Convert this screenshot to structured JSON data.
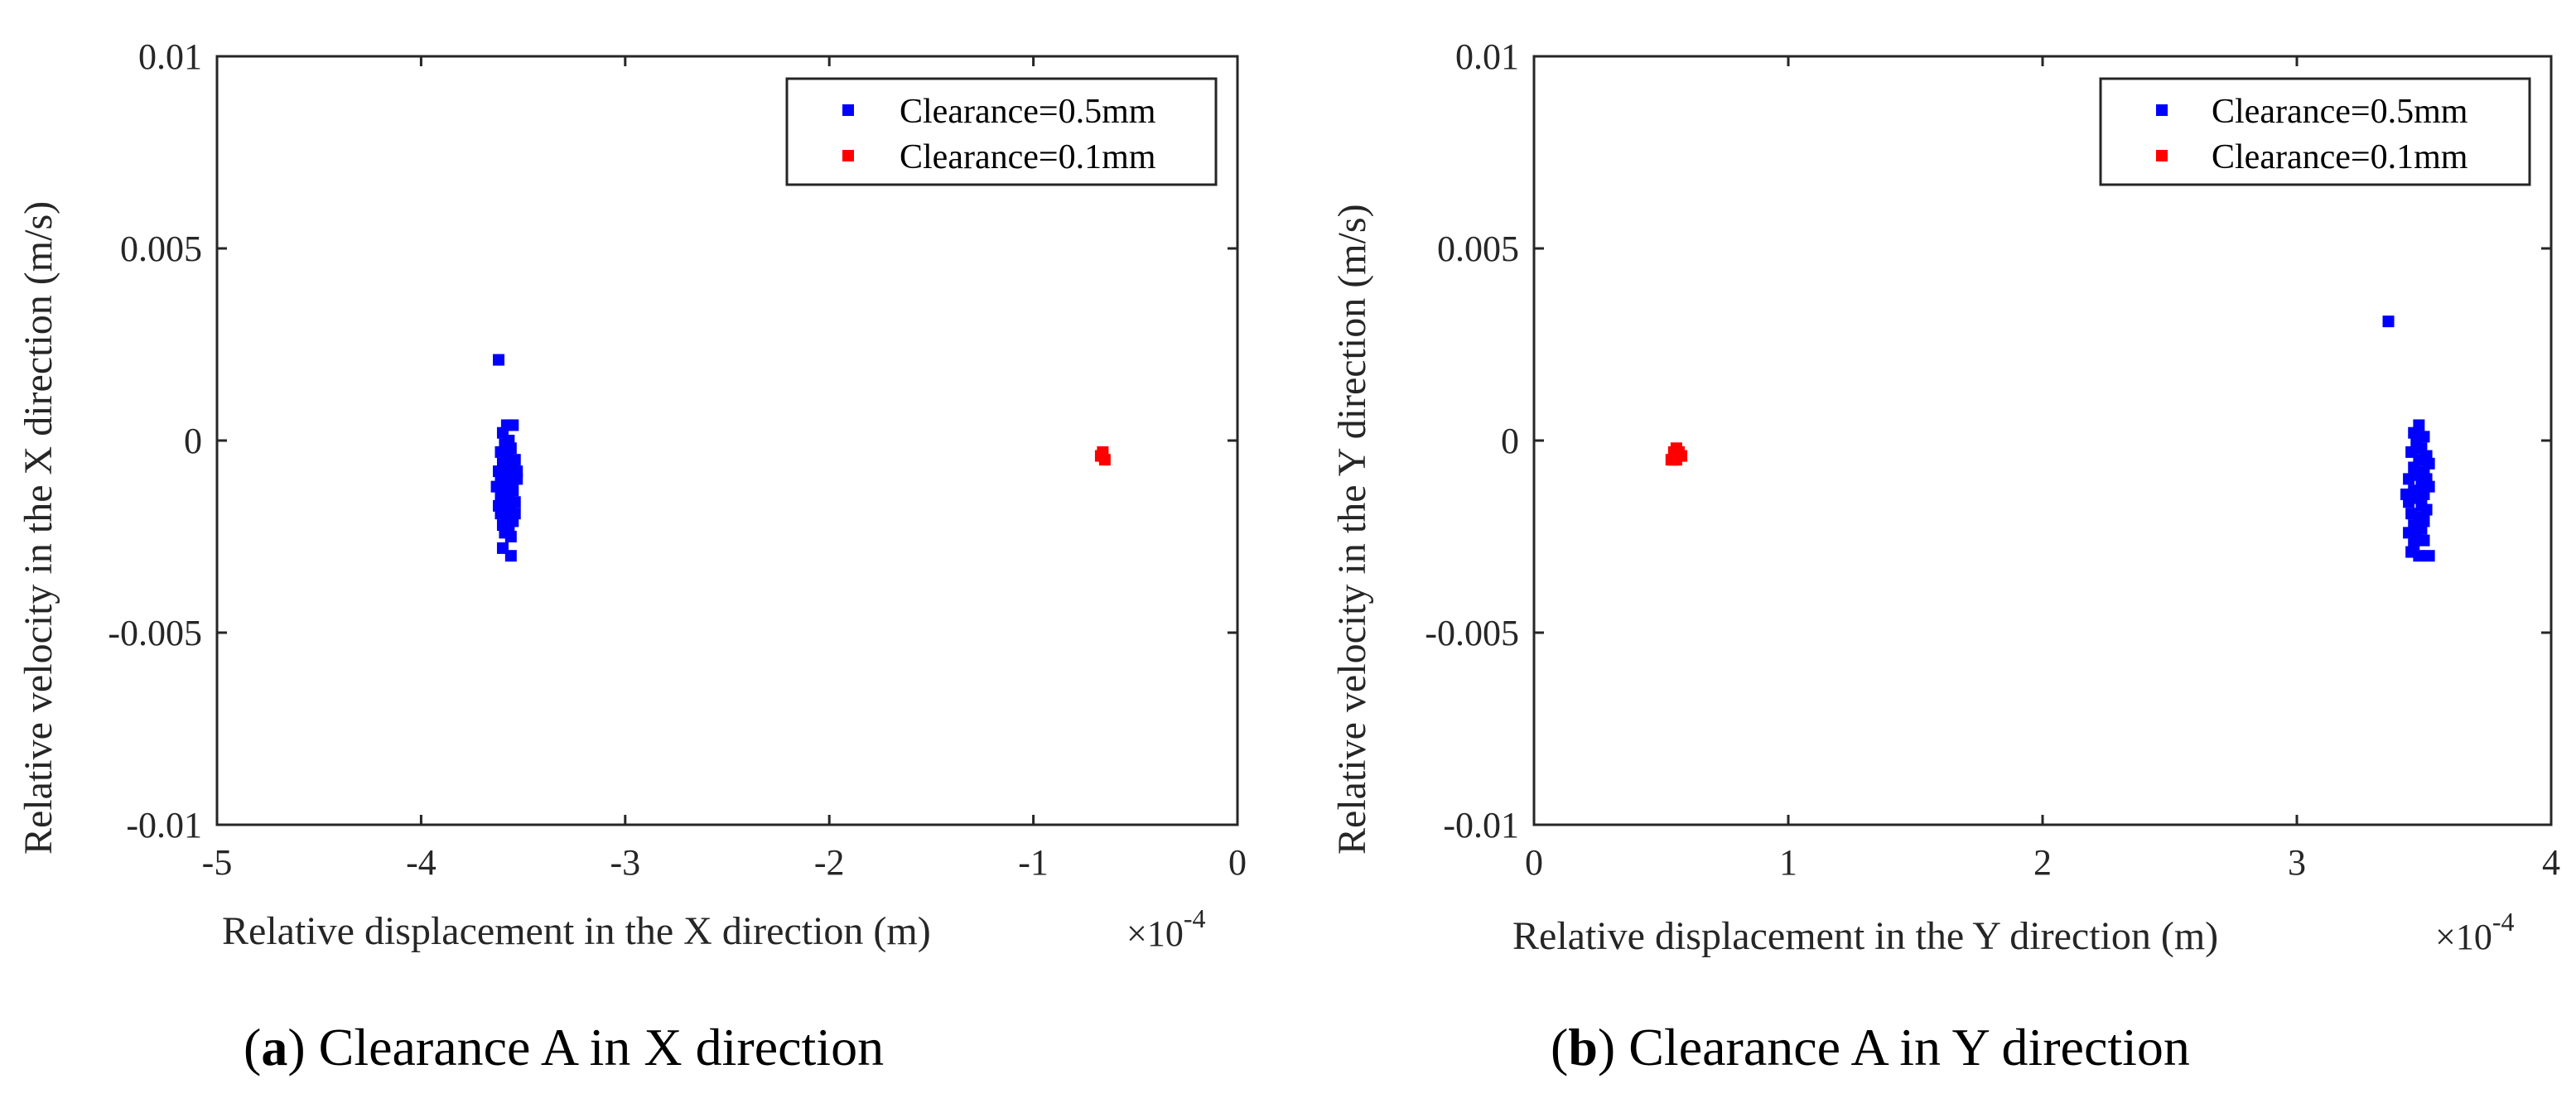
{
  "chart_data": [
    {
      "type": "scatter",
      "panel": "a",
      "caption_letter": "a",
      "caption_text": "Clearance A in X direction",
      "xlabel": "Relative displacement in the X direction (m)",
      "ylabel": "Relative velocity in the X direction (m/s)",
      "x_multiplier": "×10",
      "x_exponent": "-4",
      "xlim": [
        -5,
        0
      ],
      "ylim": [
        -0.01,
        0.01
      ],
      "xticks": [
        -5,
        -4,
        -3,
        -2,
        -1,
        0
      ],
      "xtick_labels": [
        "-5",
        "-4",
        "-3",
        "-2",
        "-1",
        "0"
      ],
      "yticks": [
        -0.01,
        -0.005,
        0,
        0.005,
        0.01
      ],
      "ytick_labels": [
        "-0.01",
        "-0.005",
        "0",
        "0.005",
        "0.01"
      ],
      "legend_position": "top-right",
      "series": [
        {
          "name": "Clearance=0.5mm",
          "color": "#0000FF",
          "points": [
            [
              -3.62,
              0.0021
            ],
            [
              -3.58,
              0.0004
            ],
            [
              -3.55,
              0.0004
            ],
            [
              -3.6,
              0.0002
            ],
            [
              -3.57,
              0.0
            ],
            [
              -3.59,
              -0.0001
            ],
            [
              -3.56,
              -0.0002
            ],
            [
              -3.61,
              -0.0003
            ],
            [
              -3.58,
              -0.0004
            ],
            [
              -3.54,
              -0.0005
            ],
            [
              -3.6,
              -0.0006
            ],
            [
              -3.57,
              -0.0007
            ],
            [
              -3.55,
              -0.0006
            ],
            [
              -3.62,
              -0.0008
            ],
            [
              -3.59,
              -0.0009
            ],
            [
              -3.56,
              -0.001
            ],
            [
              -3.53,
              -0.001
            ],
            [
              -3.61,
              -0.0011
            ],
            [
              -3.58,
              -0.0012
            ],
            [
              -3.55,
              -0.0013
            ],
            [
              -3.6,
              -0.0014
            ],
            [
              -3.57,
              -0.0015
            ],
            [
              -3.54,
              -0.0016
            ],
            [
              -3.62,
              -0.0017
            ],
            [
              -3.59,
              -0.0018
            ],
            [
              -3.56,
              -0.0018
            ],
            [
              -3.61,
              -0.0019
            ],
            [
              -3.58,
              -0.002
            ],
            [
              -3.55,
              -0.0021
            ],
            [
              -3.6,
              -0.0022
            ],
            [
              -3.57,
              -0.0023
            ],
            [
              -3.59,
              -0.0024
            ],
            [
              -3.56,
              -0.0025
            ],
            [
              -3.6,
              -0.0028
            ],
            [
              -3.56,
              -0.003
            ],
            [
              -3.63,
              -0.0012
            ],
            [
              -3.53,
              -0.0008
            ],
            [
              -3.58,
              -0.0005
            ],
            [
              -3.61,
              -0.0015
            ],
            [
              -3.54,
              -0.0019
            ]
          ]
        },
        {
          "name": "Clearance=0.1mm",
          "color": "#FF0000",
          "points": [
            [
              -0.66,
              -0.0004
            ],
            [
              -0.65,
              -0.0005
            ],
            [
              -0.67,
              -0.0004
            ],
            [
              -0.66,
              -0.0003
            ]
          ]
        }
      ]
    },
    {
      "type": "scatter",
      "panel": "b",
      "caption_letter": "b",
      "caption_text": "Clearance A in Y direction",
      "xlabel": "Relative displacement in the Y direction (m)",
      "ylabel": "Relative velocity in the Y direction (m/s)",
      "x_multiplier": "×10",
      "x_exponent": "-4",
      "xlim": [
        0,
        4
      ],
      "ylim": [
        -0.01,
        0.01
      ],
      "xticks": [
        0,
        1,
        2,
        3,
        4
      ],
      "xtick_labels": [
        "0",
        "1",
        "2",
        "3",
        "4"
      ],
      "yticks": [
        -0.01,
        -0.005,
        0,
        0.005,
        0.01
      ],
      "ytick_labels": [
        "-0.01",
        "-0.005",
        "0",
        "0.005",
        "0.01"
      ],
      "legend_position": "top-right",
      "series": [
        {
          "name": "Clearance=0.5mm",
          "color": "#0000FF",
          "points": [
            [
              3.36,
              0.0031
            ],
            [
              3.48,
              0.0004
            ],
            [
              3.46,
              0.0002
            ],
            [
              3.5,
              0.0001
            ],
            [
              3.47,
              0.0
            ],
            [
              3.49,
              -0.0002
            ],
            [
              3.45,
              -0.0003
            ],
            [
              3.51,
              -0.0004
            ],
            [
              3.48,
              -0.0005
            ],
            [
              3.52,
              -0.0006
            ],
            [
              3.46,
              -0.0007
            ],
            [
              3.5,
              -0.0008
            ],
            [
              3.47,
              -0.0009
            ],
            [
              3.44,
              -0.001
            ],
            [
              3.49,
              -0.0011
            ],
            [
              3.52,
              -0.0012
            ],
            [
              3.46,
              -0.0013
            ],
            [
              3.5,
              -0.0014
            ],
            [
              3.47,
              -0.0015
            ],
            [
              3.44,
              -0.0016
            ],
            [
              3.49,
              -0.0017
            ],
            [
              3.51,
              -0.0018
            ],
            [
              3.45,
              -0.0019
            ],
            [
              3.48,
              -0.002
            ],
            [
              3.5,
              -0.0021
            ],
            [
              3.46,
              -0.0022
            ],
            [
              3.49,
              -0.0023
            ],
            [
              3.44,
              -0.0024
            ],
            [
              3.47,
              -0.0025
            ],
            [
              3.5,
              -0.0026
            ],
            [
              3.46,
              -0.0027
            ],
            [
              3.48,
              -0.003
            ],
            [
              3.52,
              -0.003
            ],
            [
              3.45,
              -0.0029
            ],
            [
              3.51,
              -0.001
            ],
            [
              3.43,
              -0.0014
            ]
          ]
        },
        {
          "name": "Clearance=0.1mm",
          "color": "#FF0000",
          "points": [
            [
              0.55,
              -0.0003
            ],
            [
              0.57,
              -0.0004
            ],
            [
              0.54,
              -0.0005
            ],
            [
              0.56,
              -0.0002
            ],
            [
              0.58,
              -0.0004
            ],
            [
              0.55,
              -0.0005
            ],
            [
              0.57,
              -0.0003
            ],
            [
              0.56,
              -0.0005
            ]
          ]
        }
      ]
    }
  ]
}
